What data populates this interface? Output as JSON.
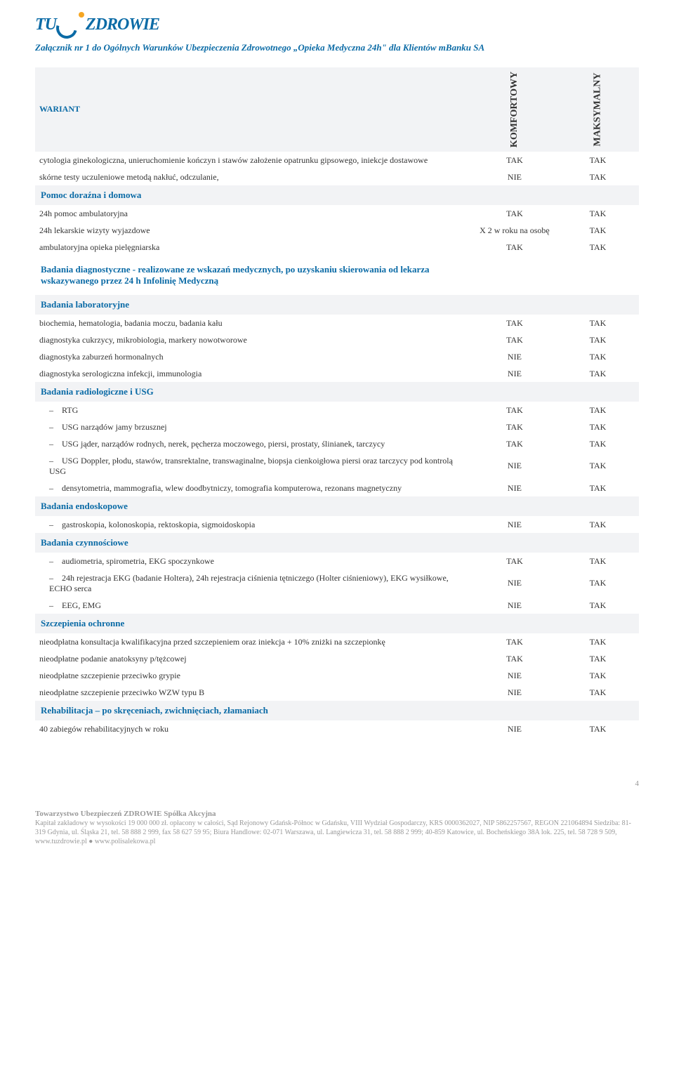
{
  "logo": {
    "left": "TU",
    "right": "ZDROWIE"
  },
  "header_sub": "Załącznik nr 1 do Ogólnych Warunków Ubezpieczenia Zdrowotnego „Opieka Medyczna 24h\" dla Klientów mBanku SA",
  "variant": "WARIANT",
  "columns": {
    "komfortowy": "KOMFORTOWY",
    "maksymalny": "MAKSYMALNY"
  },
  "rows": [
    {
      "type": "data",
      "label": "cytologia ginekologiczna, unieruchomienie kończyn i stawów założenie opatrunku gipsowego, iniekcje dostawowe",
      "c1": "TAK",
      "c2": "TAK"
    },
    {
      "type": "data",
      "label": "skórne testy uczuleniowe metodą nakłuć, odczulanie,",
      "c1": "NIE",
      "c2": "TAK"
    },
    {
      "type": "section",
      "label": "Pomoc doraźna i domowa"
    },
    {
      "type": "data",
      "label": "24h pomoc ambulatoryjna",
      "c1": "TAK",
      "c2": "TAK"
    },
    {
      "type": "data",
      "label": "24h lekarskie wizyty wyjazdowe",
      "c1": "X 2 w roku na osobę",
      "c2": "TAK"
    },
    {
      "type": "data",
      "label": "ambulatoryjna opieka pielęgniarska",
      "c1": "TAK",
      "c2": "TAK"
    },
    {
      "type": "section",
      "label": "Badania diagnostyczne - realizowane ze wskazań medycznych, po uzyskaniu skierowania od lekarza wskazywanego przez 24 h Infolinię Medyczną",
      "plain_bg": true
    },
    {
      "type": "section",
      "label": "Badania laboratoryjne"
    },
    {
      "type": "data",
      "label": "biochemia, hematologia, badania moczu, badania kału",
      "c1": "TAK",
      "c2": "TAK"
    },
    {
      "type": "data",
      "label": "diagnostyka cukrzycy, mikrobiologia, markery nowotworowe",
      "c1": "TAK",
      "c2": "TAK"
    },
    {
      "type": "data",
      "label": "diagnostyka zaburzeń hormonalnych",
      "c1": "NIE",
      "c2": "TAK"
    },
    {
      "type": "data",
      "label": "diagnostyka serologiczna infekcji, immunologia",
      "c1": "NIE",
      "c2": "TAK"
    },
    {
      "type": "section",
      "label": "Badania radiologiczne i USG"
    },
    {
      "type": "dash",
      "label": "RTG",
      "c1": "TAK",
      "c2": "TAK"
    },
    {
      "type": "dash",
      "label": "USG narządów jamy brzusznej",
      "c1": "TAK",
      "c2": "TAK"
    },
    {
      "type": "dash",
      "label": "USG  jąder, narządów rodnych, nerek, pęcherza moczowego, piersi, prostaty, ślinianek, tarczycy",
      "c1": "TAK",
      "c2": "TAK"
    },
    {
      "type": "dash",
      "label": "USG Doppler, płodu, stawów, transrektalne, transwaginalne, biopsja cienkoigłowa piersi oraz  tarczycy pod kontrolą USG",
      "c1": "NIE",
      "c2": "TAK"
    },
    {
      "type": "dash",
      "label": "densytometria, mammografia, wlew doodbytniczy, tomografia komputerowa, rezonans magnetyczny",
      "c1": "NIE",
      "c2": "TAK"
    },
    {
      "type": "section",
      "label": "Badania endoskopowe"
    },
    {
      "type": "dash",
      "label": "gastroskopia, kolonoskopia, rektoskopia, sigmoidoskopia",
      "c1": "NIE",
      "c2": "TAK"
    },
    {
      "type": "section",
      "label": "Badania czynnościowe"
    },
    {
      "type": "dash",
      "label": "audiometria, spirometria, EKG spoczynkowe",
      "c1": "TAK",
      "c2": "TAK"
    },
    {
      "type": "dash",
      "label": "24h rejestracja EKG (badanie Holtera), 24h rejestracja ciśnienia tętniczego (Holter ciśnieniowy), EKG wysiłkowe, ECHO serca",
      "c1": "NIE",
      "c2": "TAK"
    },
    {
      "type": "dash",
      "label": "EEG, EMG",
      "c1": "NIE",
      "c2": "TAK"
    },
    {
      "type": "section",
      "label": "Szczepienia ochronne"
    },
    {
      "type": "data",
      "label": "nieodpłatna konsultacja kwalifikacyjna przed szczepieniem oraz iniekcja + 10% zniżki na szczepionkę",
      "c1": "TAK",
      "c2": "TAK"
    },
    {
      "type": "data",
      "label": "nieodpłatne podanie anatoksyny p/tężcowej",
      "c1": "TAK",
      "c2": "TAK"
    },
    {
      "type": "data",
      "label": "nieodpłatne szczepienie przeciwko grypie",
      "c1": "NIE",
      "c2": "TAK"
    },
    {
      "type": "data",
      "label": "nieodpłatne szczepienie przeciwko WZW typu B",
      "c1": "NIE",
      "c2": "TAK"
    },
    {
      "type": "section",
      "label": "Rehabilitacja – po skręceniach, zwichnięciach, złamaniach"
    },
    {
      "type": "data",
      "label": "40 zabiegów rehabilitacyjnych w roku",
      "c1": "NIE",
      "c2": "TAK"
    }
  ],
  "page_number": "4",
  "footer": {
    "title": "Towarzystwo Ubezpieczeń ZDROWIE Spółka Akcyjna",
    "body": "Kapitał zakładowy w wysokości 19 000 000 zł. opłacony w całości, Sąd Rejonowy Gdańsk-Północ w Gdańsku, VIII Wydział Gospodarczy, KRS 0000362027, NIP 5862257567, REGON 221064894 Siedziba: 81-319 Gdynia, ul. Śląska 21, tel. 58 888 2 999, fax 58 627 59 95; Biura Handlowe: 02-071 Warszawa, ul. Langiewicza 31, tel. 58 888 2 999; 40-859 Katowice, ul. Bocheńskiego 38A lok. 225, tel. 58 728 9 509, www.tuzdrowie.pl ● www.polisalekowa.pl"
  }
}
